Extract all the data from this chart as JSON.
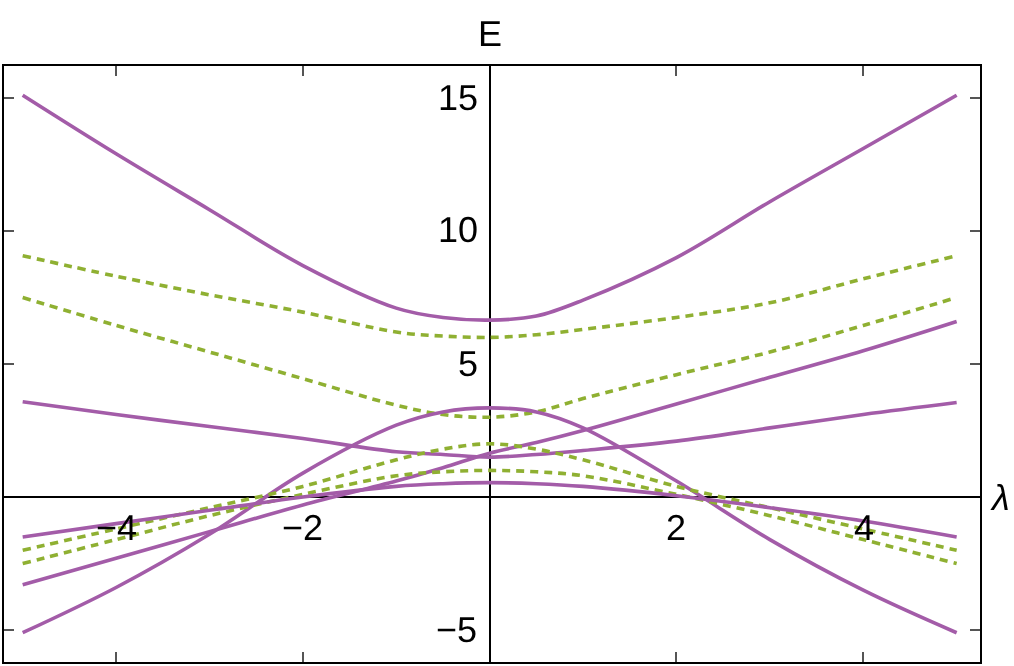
{
  "chart_data": {
    "type": "line",
    "xlabel": "λ",
    "ylabel": "E",
    "x": [
      -5,
      -4,
      -3,
      -2,
      -1,
      -0.5,
      0,
      0.5,
      1,
      2,
      3,
      4,
      5
    ],
    "series": [
      {
        "color": "#a35ca8",
        "line_style": "solid",
        "values": [
          15.1,
          12.9,
          10.8,
          8.7,
          7.1,
          6.75,
          6.65,
          6.8,
          7.4,
          9.0,
          11.1,
          13.1,
          15.1
        ]
      },
      {
        "color": "#8fb032",
        "line_style": "dashed",
        "values": [
          9.07,
          8.3,
          7.6,
          6.95,
          6.2,
          6.05,
          6.0,
          6.1,
          6.3,
          6.75,
          7.3,
          8.2,
          9.07
        ]
      },
      {
        "color": "#8fb032",
        "line_style": "dashed",
        "values": [
          7.5,
          6.45,
          5.45,
          4.45,
          3.45,
          3.1,
          3.0,
          3.2,
          3.7,
          4.6,
          5.45,
          6.45,
          7.5
        ]
      },
      {
        "color": "#a35ca8",
        "line_style": "solid",
        "values": [
          3.58,
          3.1,
          2.65,
          2.2,
          1.7,
          1.6,
          1.5,
          1.6,
          1.75,
          2.1,
          2.6,
          3.1,
          3.55
        ]
      },
      {
        "color": "#a35ca8",
        "line_style": "solid",
        "values": [
          -3.3,
          -2.3,
          -1.3,
          -0.3,
          0.6,
          1.1,
          1.65,
          2.05,
          2.5,
          3.5,
          4.5,
          5.5,
          6.6
        ]
      },
      {
        "color": "#a35ca8",
        "line_style": "solid",
        "values": [
          -5.1,
          -3.4,
          -1.4,
          0.9,
          2.7,
          3.2,
          3.35,
          3.2,
          2.6,
          0.6,
          -1.6,
          -3.5,
          -5.1
        ]
      },
      {
        "color": "#8fb032",
        "line_style": "dashed",
        "values": [
          -2.0,
          -1.2,
          -0.4,
          0.4,
          1.4,
          1.8,
          2.0,
          1.8,
          1.4,
          0.4,
          -0.4,
          -1.2,
          -2.0
        ]
      },
      {
        "color": "#8fb032",
        "line_style": "dashed",
        "values": [
          -2.5,
          -1.6,
          -0.7,
          0.1,
          0.8,
          0.95,
          1.0,
          0.95,
          0.8,
          0.1,
          -0.7,
          -1.6,
          -2.5
        ]
      },
      {
        "color": "#a35ca8",
        "line_style": "solid",
        "values": [
          -1.5,
          -1.0,
          -0.5,
          0.0,
          0.4,
          0.5,
          0.54,
          0.5,
          0.4,
          0.05,
          -0.4,
          -0.9,
          -1.5
        ]
      }
    ],
    "xlim": [
      -5.2,
      5.25
    ],
    "ylim": [
      -6.2,
      16.2
    ],
    "xticks": [
      -4,
      -2,
      2,
      4
    ],
    "yticks": [
      -5,
      5,
      10,
      15
    ],
    "marker": "none"
  }
}
